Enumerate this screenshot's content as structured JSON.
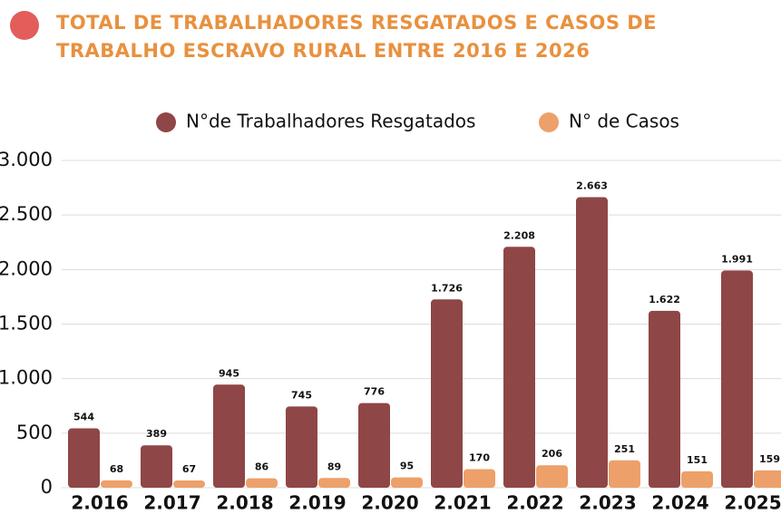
{
  "chart_data": {
    "type": "bar",
    "title": "TOTAL DE TRABALHADORES RESGATADOS E CASOS DE TRABALHO ESCRAVO RURAL ENTRE 2016 E 2026",
    "categories": [
      "2.016",
      "2.017",
      "2.018",
      "2.019",
      "2.020",
      "2.021",
      "2.022",
      "2.023",
      "2.024",
      "2.025"
    ],
    "series": [
      {
        "name": "N°de Trabalhadores Resgatados",
        "color": "#8f4646",
        "values": [
          544,
          389,
          945,
          745,
          776,
          1726,
          2208,
          2663,
          1622,
          1991
        ],
        "value_labels": [
          "544",
          "389",
          "945",
          "745",
          "776",
          "1.726",
          "2.208",
          "2.663",
          "1.622",
          "1.991"
        ]
      },
      {
        "name": "N° de Casos",
        "color": "#eda06a",
        "values": [
          68,
          67,
          86,
          89,
          95,
          170,
          206,
          251,
          151,
          159
        ],
        "value_labels": [
          "68",
          "67",
          "86",
          "89",
          "95",
          "170",
          "206",
          "251",
          "151",
          "159"
        ]
      }
    ],
    "ylim": [
      0,
      3000
    ],
    "yticks": [
      0,
      500,
      {
        "value": 1000,
        "label": "1.000"
      },
      {
        "value": 1500,
        "label": "1.500"
      },
      {
        "value": 2000,
        "label": "2.000"
      },
      {
        "value": 2500,
        "label": "2.500"
      },
      {
        "value": 3000,
        "label": "3.000"
      }
    ],
    "grid": true,
    "legend": "top"
  }
}
